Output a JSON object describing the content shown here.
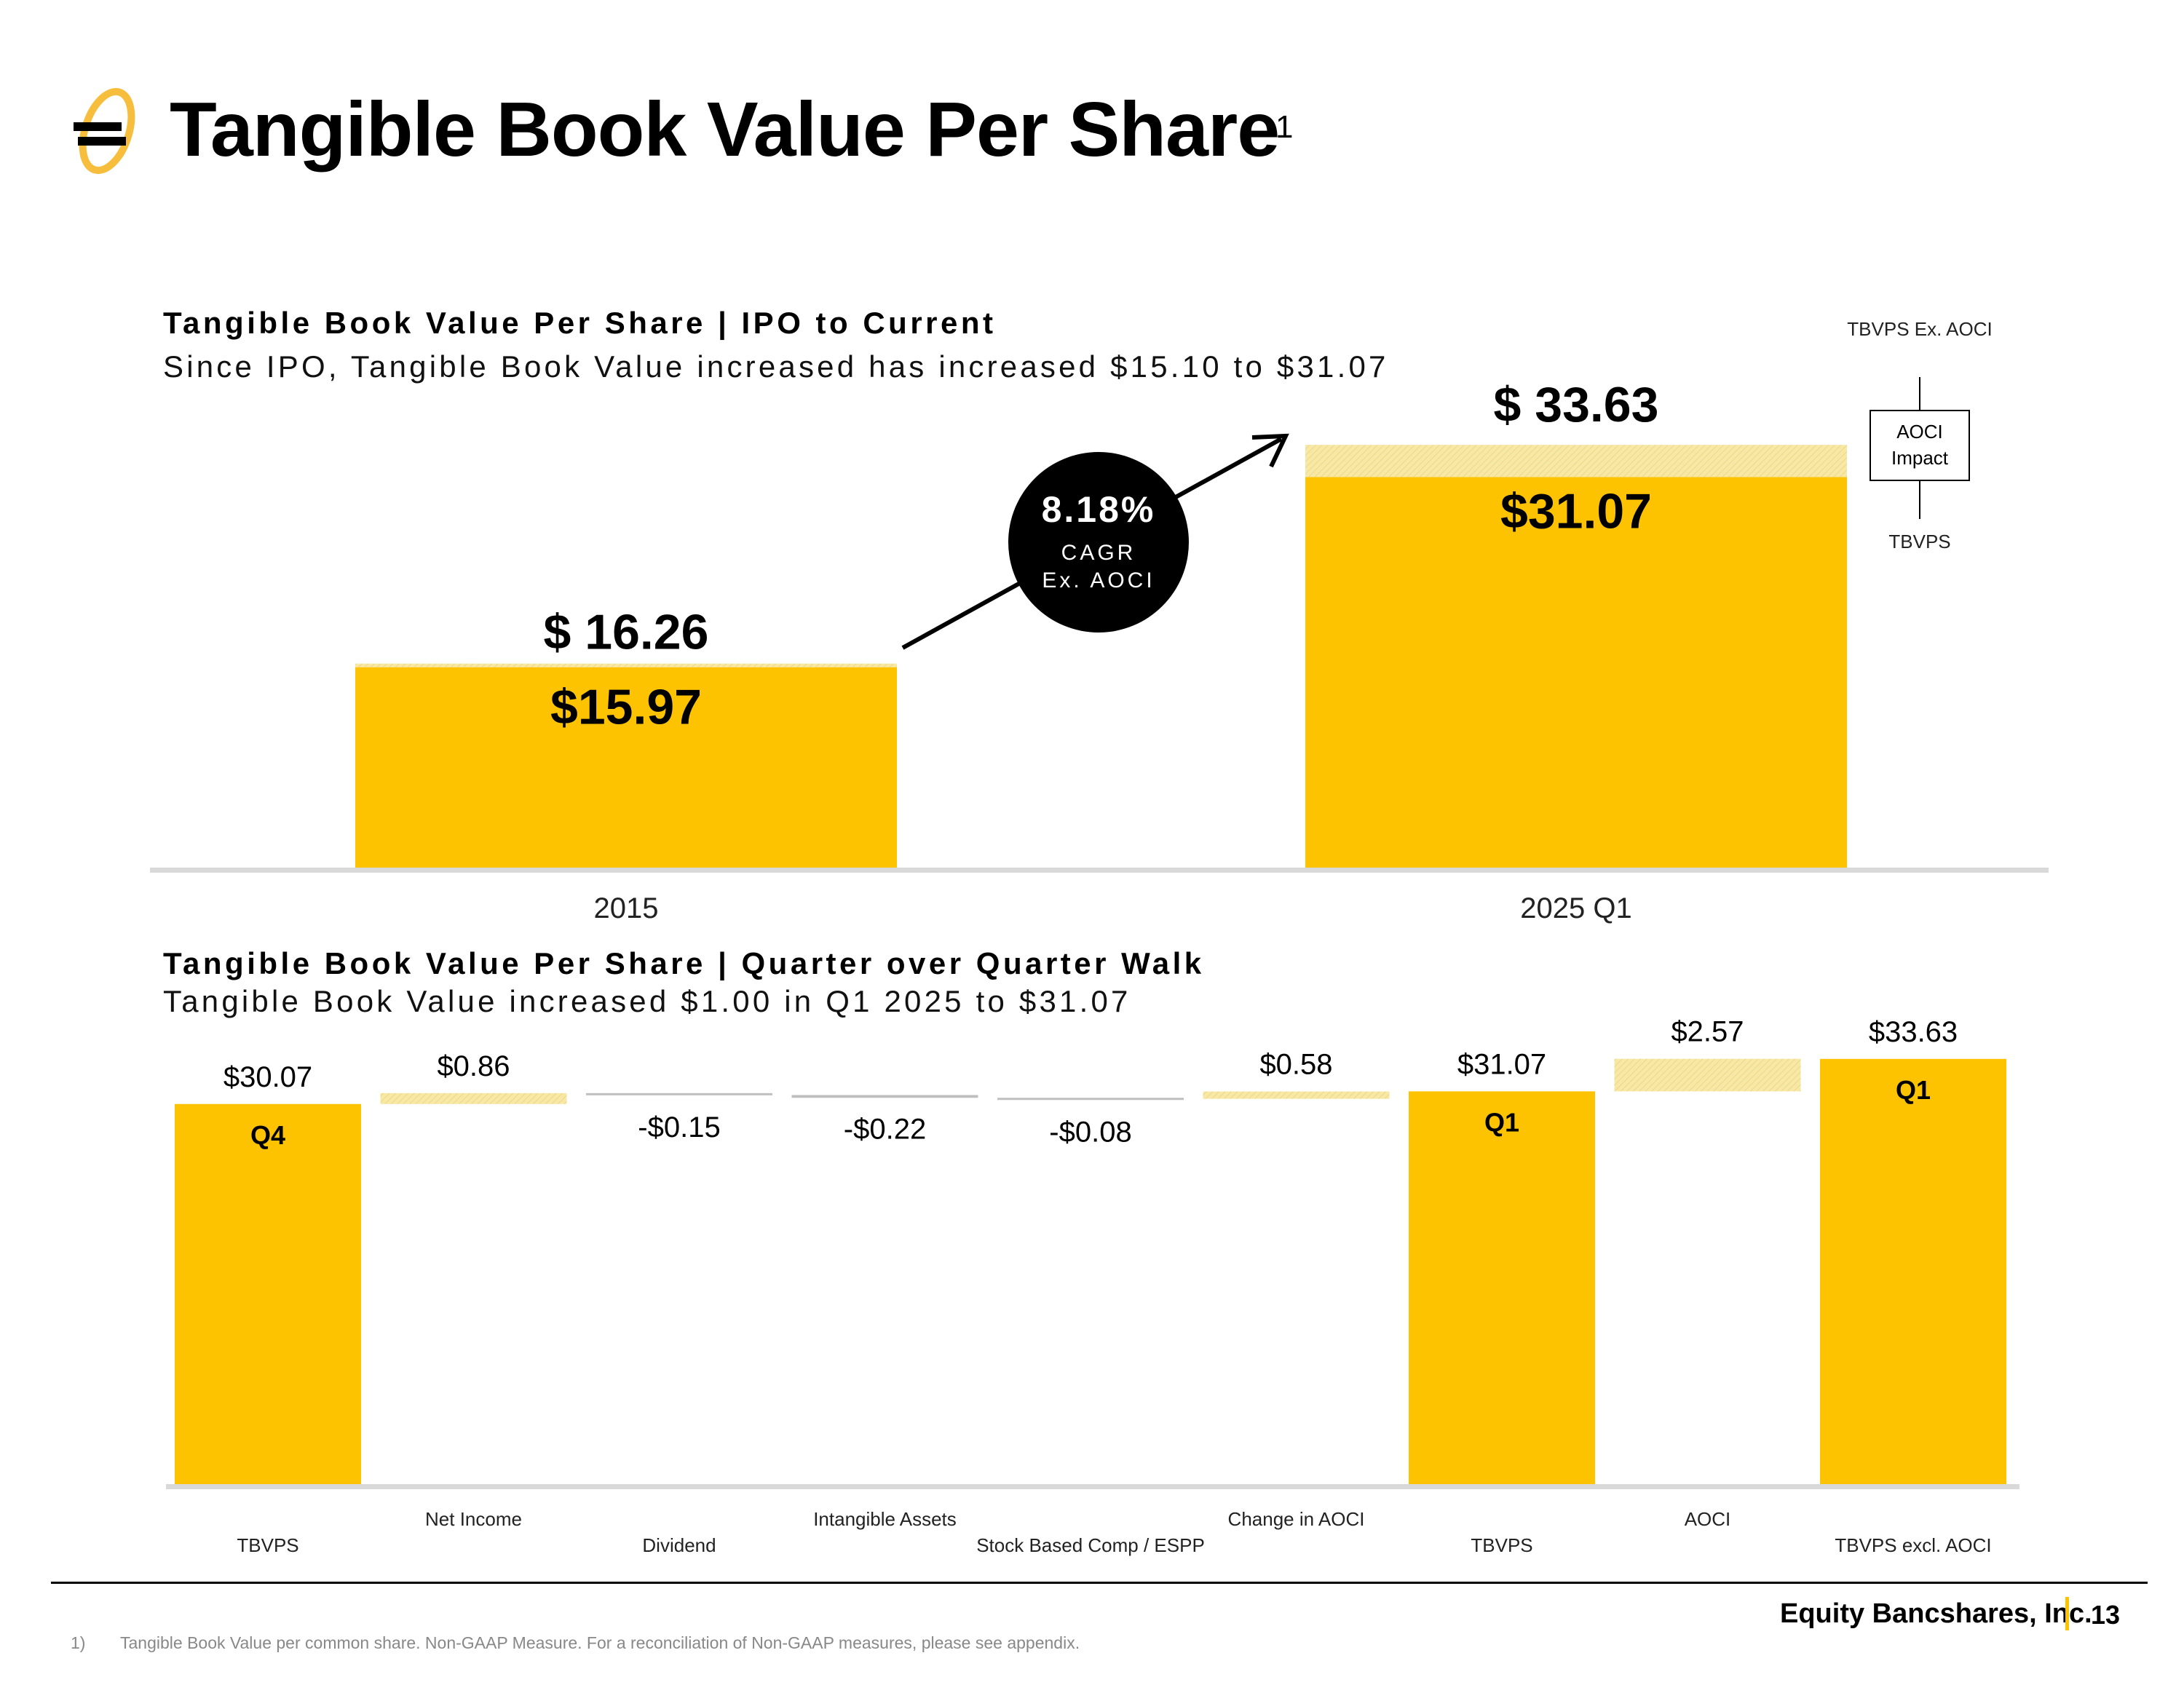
{
  "header": {
    "title": "Tangible Book Value Per Share",
    "superscript": "1",
    "logo_icon": "equity-bank-logo-icon"
  },
  "colors": {
    "accent": "#FDC300",
    "aoci_hatch": "#F7E8A6",
    "baseline": "#D9D9D9"
  },
  "top_section": {
    "title": "Tangible Book Value Per Share | IPO to Current",
    "subtitle": "Since IPO, Tangible Book Value increased has increased $15.10 to $31.07",
    "cagr": {
      "value": "8.18%",
      "label": "CAGR",
      "note": "Ex. AOCI"
    },
    "legend": {
      "top": "TBVPS Ex. AOCI",
      "box": "AOCI Impact",
      "bottom": "TBVPS"
    }
  },
  "bottom_section": {
    "title": "Tangible Book Value Per Share | Quarter over Quarter Walk",
    "subtitle": "Tangible Book Value increased $1.00 in Q1 2025 to $31.07"
  },
  "chart_data": [
    {
      "type": "bar",
      "title": "Tangible Book Value Per Share | IPO to Current",
      "categories": [
        "2015",
        "2025 Q1"
      ],
      "series": [
        {
          "name": "TBVPS",
          "values": [
            15.97,
            31.07
          ],
          "labels": [
            "$15.97",
            "$31.07"
          ]
        },
        {
          "name": "AOCI Impact",
          "values": [
            0.29,
            2.56
          ]
        }
      ],
      "totals": [
        16.26,
        33.63
      ],
      "total_labels": [
        "$ 16.26",
        "$ 33.63"
      ],
      "ylim": [
        0,
        35
      ]
    },
    {
      "type": "bar",
      "subtype": "waterfall",
      "title": "Tangible Book Value Per Share | Quarter over Quarter Walk",
      "categories": [
        "TBVPS",
        "Net Income",
        "Dividend",
        "Intangible Assets",
        "Stock Based Comp / ESPP",
        "Change in AOCI",
        "TBVPS",
        "AOCI",
        "TBVPS excl. AOCI"
      ],
      "values": [
        30.07,
        0.86,
        -0.15,
        -0.22,
        -0.08,
        0.58,
        31.07,
        2.57,
        33.63
      ],
      "labels": [
        "$30.07",
        "$0.86",
        "-$0.15",
        "-$0.22",
        "-$0.08",
        "$0.58",
        "$31.07",
        "$2.57",
        "$33.63"
      ],
      "bar_tags": [
        "Q4",
        "",
        "",
        "",
        "",
        "",
        "Q1",
        "",
        "Q1"
      ],
      "kinds": [
        "total",
        "delta",
        "delta",
        "delta",
        "delta",
        "delta",
        "total",
        "delta",
        "total"
      ],
      "ylim": [
        0,
        35
      ]
    }
  ],
  "footer": {
    "company": "Equity Bancshares, Inc.",
    "page": "13",
    "footnote_marker": "1)",
    "footnote": "Tangible Book Value per common share. Non-GAAP Measure. For a reconciliation of Non-GAAP measures, please see appendix."
  }
}
